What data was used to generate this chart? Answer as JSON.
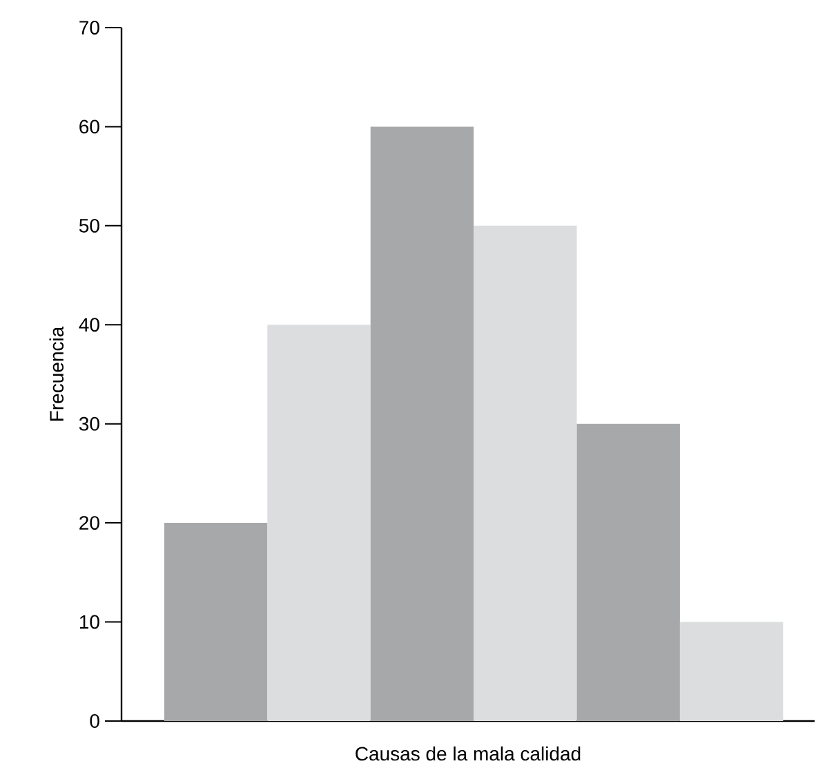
{
  "chart_data": {
    "type": "bar",
    "xlabel": "Causas de la mala calidad",
    "ylabel": "Frecuencia",
    "categories": [
      null,
      null,
      null,
      null,
      null,
      null
    ],
    "values": [
      20,
      40,
      60,
      50,
      30,
      10
    ],
    "colors": [
      "#a7a8aa",
      "#dcdddf",
      "#a7a8aa",
      "#dcdddf",
      "#a7a8aa",
      "#dcdddf"
    ],
    "ylim": [
      0,
      70
    ],
    "yticks": [
      0,
      10,
      20,
      30,
      40,
      50,
      60,
      70
    ]
  }
}
